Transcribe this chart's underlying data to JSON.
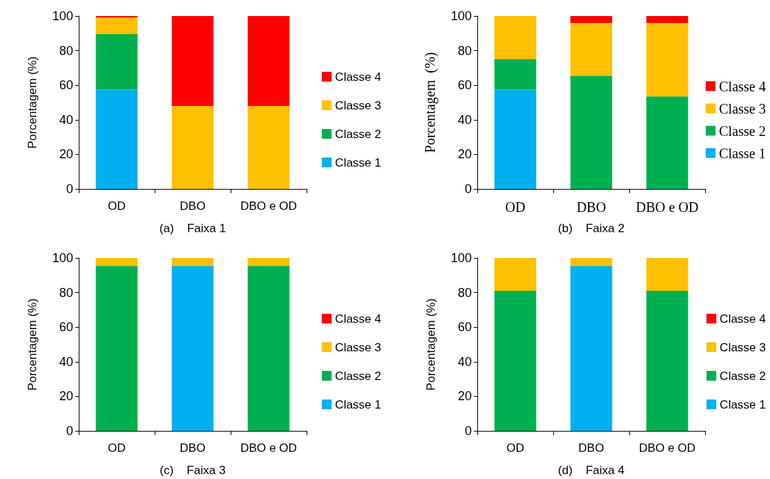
{
  "chart_data": [
    {
      "type": "bar",
      "xlabel": "(a)    Faixa 1",
      "ylabel": "Porcentagem (%)",
      "categories": [
        "OD",
        "DBO",
        "DBO e OD"
      ],
      "stacked": true,
      "ylim": [
        0,
        100
      ],
      "yticks": [
        0,
        20,
        40,
        60,
        80,
        100
      ],
      "grid": false,
      "legend": "right",
      "series": [
        {
          "name": "Classe 1",
          "color": "#00b0f0",
          "values": [
            57.5,
            0,
            0
          ]
        },
        {
          "name": "Classe 2",
          "color": "#00b050",
          "values": [
            32,
            0,
            0
          ]
        },
        {
          "name": "Classe 3",
          "color": "#ffc000",
          "values": [
            9.7,
            48,
            48
          ]
        },
        {
          "name": "Classe 4",
          "color": "#ff0000",
          "values": [
            0.8,
            52,
            52
          ]
        }
      ]
    },
    {
      "type": "bar",
      "xlabel": "(b)    Faixa 2",
      "ylabel": "Porcentagem  (%)",
      "categories": [
        "OD",
        "DBO",
        "DBO e OD"
      ],
      "stacked": true,
      "ylim": [
        0,
        100
      ],
      "yticks": [
        0,
        20,
        40,
        60,
        80,
        100
      ],
      "grid": false,
      "legend": "right",
      "series": [
        {
          "name": "Classe 1",
          "color": "#00b0f0",
          "values": [
            57.5,
            0,
            0
          ]
        },
        {
          "name": "Classe 2",
          "color": "#00b050",
          "values": [
            17.5,
            65.5,
            53.5
          ]
        },
        {
          "name": "Classe 3",
          "color": "#ffc000",
          "values": [
            25,
            30.5,
            42.5
          ]
        },
        {
          "name": "Classe 4",
          "color": "#ff0000",
          "values": [
            0,
            4,
            4
          ]
        }
      ]
    },
    {
      "type": "bar",
      "xlabel": "(c)    Faixa 3",
      "ylabel": "Porcentagem (%)",
      "categories": [
        "OD",
        "DBO",
        "DBO e OD"
      ],
      "stacked": true,
      "ylim": [
        0,
        100
      ],
      "yticks": [
        0,
        20,
        40,
        60,
        80,
        100
      ],
      "grid": false,
      "legend": "right",
      "series": [
        {
          "name": "Classe 1",
          "color": "#00b0f0",
          "values": [
            0,
            95.5,
            0
          ]
        },
        {
          "name": "Classe 2",
          "color": "#00b050",
          "values": [
            95.5,
            0,
            95.5
          ]
        },
        {
          "name": "Classe 3",
          "color": "#ffc000",
          "values": [
            4.5,
            4.5,
            4.5
          ]
        },
        {
          "name": "Classe 4",
          "color": "#ff0000",
          "values": [
            0,
            0,
            0
          ]
        }
      ]
    },
    {
      "type": "bar",
      "xlabel": "(d)    Faixa 4",
      "ylabel": "Porcentagem (%)",
      "categories": [
        "OD",
        "DBO",
        "DBO e OD"
      ],
      "stacked": true,
      "ylim": [
        0,
        100
      ],
      "yticks": [
        0,
        20,
        40,
        60,
        80,
        100
      ],
      "grid": false,
      "legend": "right",
      "series": [
        {
          "name": "Classe 1",
          "color": "#00b0f0",
          "values": [
            0,
            95.5,
            0
          ]
        },
        {
          "name": "Classe 2",
          "color": "#00b050",
          "values": [
            81,
            0,
            81
          ]
        },
        {
          "name": "Classe 3",
          "color": "#ffc000",
          "values": [
            19,
            4.5,
            19
          ]
        },
        {
          "name": "Classe 4",
          "color": "#ff0000",
          "values": [
            0,
            0,
            0
          ]
        }
      ]
    }
  ]
}
